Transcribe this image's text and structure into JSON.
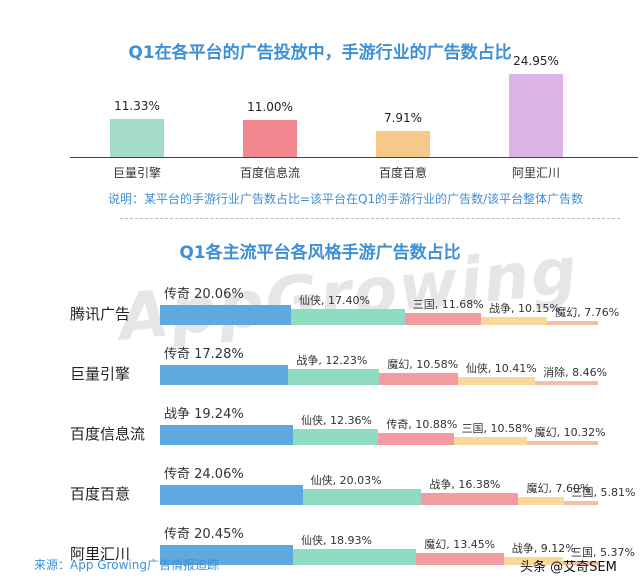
{
  "chart_data": [
    {
      "type": "bar",
      "title": "Q1在各平台的广告投放中，手游行业的广告数占比",
      "categories": [
        "巨量引擎",
        "百度信息流",
        "百度百意",
        "阿里汇川"
      ],
      "values": [
        11.33,
        11.0,
        7.91,
        24.95
      ],
      "value_labels": [
        "11.33%",
        "11.00%",
        "7.91%",
        "24.95%"
      ],
      "colors": [
        "#a3dcc6",
        "#f3878f",
        "#f6c98b",
        "#dcb4e8"
      ],
      "ylim": [
        0,
        30
      ],
      "note": "说明：某平台的手游行业广告数占比=该平台在Q1的手游行业的广告数/该平台整体广告数"
    },
    {
      "type": "bar",
      "subtype": "horizontal-segmented",
      "title": "Q1各主流平台各风格手游广告数占比",
      "rows": [
        {
          "label": "腾讯广告",
          "segments": [
            {
              "text": "传奇 20.06%",
              "value": 20.06,
              "color": "#5fa8e0"
            },
            {
              "text": "仙侠, 17.40%",
              "value": 17.4,
              "color": "#8fdcc0"
            },
            {
              "text": "三国, 11.68%",
              "value": 11.68,
              "color": "#f49aa2"
            },
            {
              "text": "战争, 10.15%",
              "value": 10.15,
              "color": "#f9d89a"
            },
            {
              "text": "魔幻, 7.76%",
              "value": 7.76,
              "color": "#f4c0a4"
            }
          ]
        },
        {
          "label": "巨量引擎",
          "segments": [
            {
              "text": "传奇 17.28%",
              "value": 17.28,
              "color": "#5fa8e0"
            },
            {
              "text": "战争, 12.23%",
              "value": 12.23,
              "color": "#8fdcc0"
            },
            {
              "text": "魔幻, 10.58%",
              "value": 10.58,
              "color": "#f49aa2"
            },
            {
              "text": "仙侠, 10.41%",
              "value": 10.41,
              "color": "#f9d89a"
            },
            {
              "text": "消除, 8.46%",
              "value": 8.46,
              "color": "#f4c0a4"
            }
          ]
        },
        {
          "label": "百度信息流",
          "segments": [
            {
              "text": "战争 19.24%",
              "value": 19.24,
              "color": "#5fa8e0"
            },
            {
              "text": "仙侠, 12.36%",
              "value": 12.36,
              "color": "#8fdcc0"
            },
            {
              "text": "传奇, 10.88%",
              "value": 10.88,
              "color": "#f49aa2"
            },
            {
              "text": "三国, 10.58%",
              "value": 10.58,
              "color": "#f9d89a"
            },
            {
              "text": "魔幻, 10.32%",
              "value": 10.32,
              "color": "#f4c0a4"
            }
          ]
        },
        {
          "label": "百度百意",
          "segments": [
            {
              "text": "传奇 24.06%",
              "value": 24.06,
              "color": "#5fa8e0"
            },
            {
              "text": "仙侠, 20.03%",
              "value": 20.03,
              "color": "#8fdcc0"
            },
            {
              "text": "战争, 16.38%",
              "value": 16.38,
              "color": "#f49aa2"
            },
            {
              "text": "魔幻, 7.60%",
              "value": 7.6,
              "color": "#f9d89a"
            },
            {
              "text": "三国, 5.81%",
              "value": 5.81,
              "color": "#f4c0a4"
            }
          ]
        },
        {
          "label": "阿里汇川",
          "segments": [
            {
              "text": "传奇 20.45%",
              "value": 20.45,
              "color": "#5fa8e0"
            },
            {
              "text": "仙侠, 18.93%",
              "value": 18.93,
              "color": "#8fdcc0"
            },
            {
              "text": "魔幻, 13.45%",
              "value": 13.45,
              "color": "#f49aa2"
            },
            {
              "text": "战争, 9.12%",
              "value": 9.12,
              "color": "#f9d89a"
            },
            {
              "text": "三国, 5.37%",
              "value": 5.37,
              "color": "#f4c0a4"
            }
          ]
        }
      ]
    }
  ],
  "background_mark": "AppGrowing",
  "source": "来源：App Growing广告情报追踪",
  "watermark": "头条 @艾奇SEM"
}
